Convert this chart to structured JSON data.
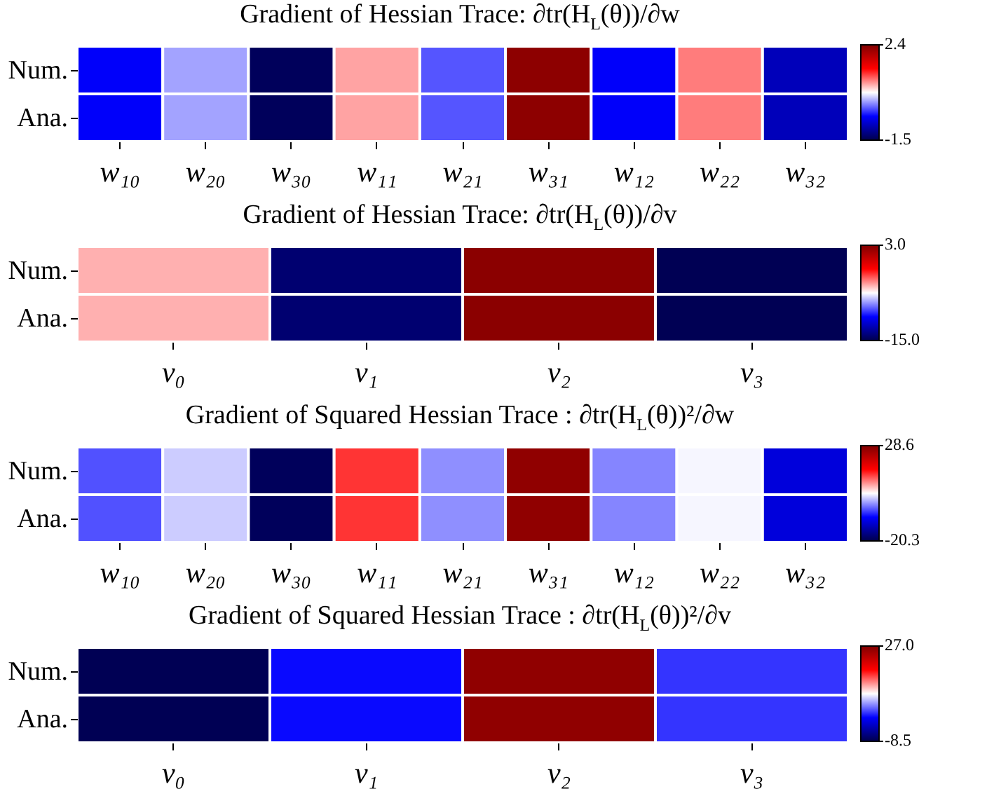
{
  "chart_data": [
    {
      "type": "heatmap",
      "title": "Gradient of Hessian Trace: ∂tr(H$_{L}$(θ))/∂w",
      "categories": [
        "w₁₀",
        "w₂₀",
        "w₃₀",
        "w₁₁",
        "w₂₁",
        "w₃₁",
        "w₁₂",
        "w₂₂",
        "w₃₂"
      ],
      "y_categories": [
        "Num.",
        "Ana."
      ],
      "cells": [
        [
          -0.55,
          0.1,
          -1.42,
          0.8,
          -0.2,
          2.3,
          -0.55,
          0.95,
          -0.9
        ],
        [
          -0.55,
          0.1,
          -1.42,
          0.8,
          -0.2,
          2.3,
          -0.55,
          0.95,
          -0.9
        ]
      ],
      "clim": [
        -1.5,
        2.4
      ],
      "cticks": [
        -1.5,
        2.4
      ]
    },
    {
      "type": "heatmap",
      "title": "Gradient of Hessian Trace: ∂tr(H$_{L}$(θ))/∂v",
      "categories": [
        "v₀",
        "v₁",
        "v₂",
        "v₃"
      ],
      "y_categories": [
        "Num.",
        "Ana."
      ],
      "cells": [
        [
          -4.6,
          -14.1,
          2.6,
          -14.8
        ],
        [
          -4.6,
          -14.1,
          2.6,
          -14.8
        ]
      ],
      "clim": [
        -15,
        3
      ],
      "cticks": [
        {
          "value": -15,
          "label": "-15.0"
        },
        {
          "value": 3,
          "label": "3.0"
        }
      ]
    },
    {
      "type": "heatmap",
      "title": "Gradient of Squared Hessian Trace : ∂tr(H$_{L}$(θ))²/∂w",
      "categories": [
        "w₁₀",
        "w₂₀",
        "w₃₀",
        "w₁₁",
        "w₂₁",
        "w₃₁",
        "w₁₂",
        "w₂₂",
        "w₃₂"
      ],
      "y_categories": [
        "Num.",
        "Ana."
      ],
      "cells": [
        [
          -4.2,
          1.7,
          -19.3,
          13.9,
          -1.2,
          27.1,
          -1.7,
          3.7,
          -10.5
        ],
        [
          -4.2,
          1.7,
          -19.3,
          13.9,
          -1.2,
          27.1,
          -1.7,
          3.7,
          -10.5
        ]
      ],
      "clim": [
        -20.3,
        28.6
      ],
      "cticks": [
        -20.3,
        28.6
      ]
    },
    {
      "type": "heatmap",
      "title": "Gradient of Squared Hessian Trace : ∂tr(H$_{L}$(θ))²/∂v",
      "categories": [
        "v₀",
        "v₁",
        "v₂",
        "v₃"
      ],
      "y_categories": [
        "Num.",
        "Ana."
      ],
      "cells": [
        [
          -8.1,
          0.7,
          25.9,
          2.2
        ],
        [
          -8.1,
          0.7,
          25.9,
          2.2
        ]
      ],
      "clim": [
        -8.5,
        27
      ],
      "cticks": [
        -8.5,
        {
          "value": 27,
          "label": "27.0"
        }
      ]
    }
  ]
}
